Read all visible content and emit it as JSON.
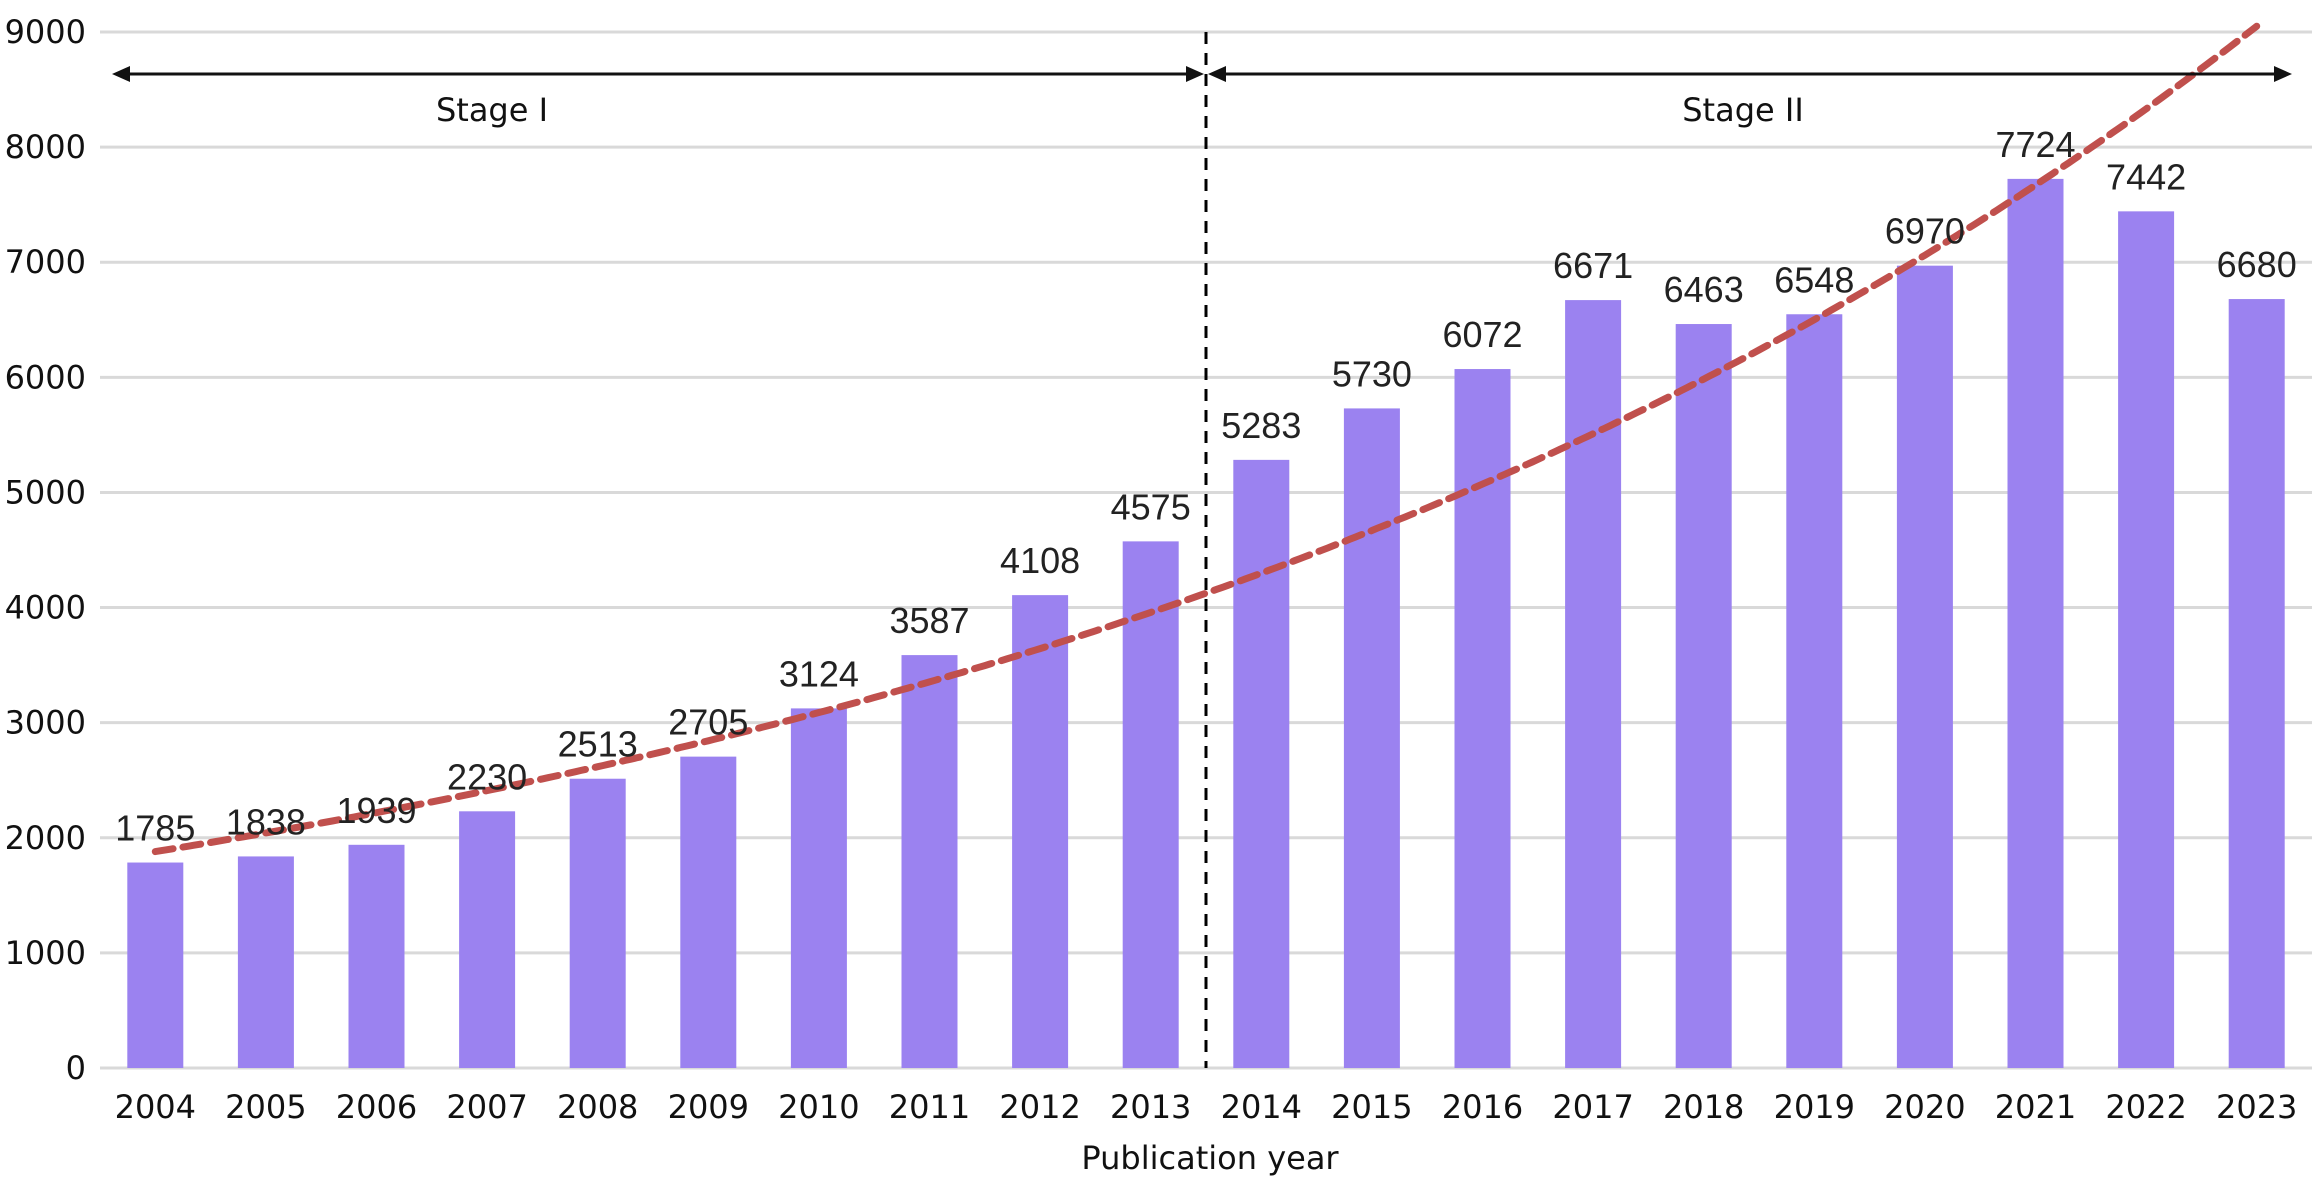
{
  "chart_data": {
    "type": "bar",
    "xlabel": "Publication year",
    "ylabel": "",
    "ylim": [
      0,
      9000
    ],
    "y_ticks": [
      "0",
      "1000",
      "2000",
      "3000",
      "4000",
      "5000",
      "6000",
      "7000",
      "8000",
      "9000"
    ],
    "grid": true,
    "categories": [
      "2004",
      "2005",
      "2006",
      "2007",
      "2008",
      "2009",
      "2010",
      "2011",
      "2012",
      "2013",
      "2014",
      "2015",
      "2016",
      "2017",
      "2018",
      "2019",
      "2020",
      "2021",
      "2022",
      "2023"
    ],
    "values": [
      1785,
      1838,
      1939,
      2230,
      2513,
      2705,
      3124,
      3587,
      4108,
      4575,
      5283,
      5730,
      6072,
      6671,
      6463,
      6548,
      6970,
      7724,
      7442,
      6680
    ],
    "trendline": {
      "style": "dashed",
      "type": "exponential",
      "start": 1880,
      "end": 9050
    },
    "stages": [
      {
        "label": "Stage I",
        "from": "2004",
        "to": "2013"
      },
      {
        "label": "Stage II",
        "from": "2014",
        "to": "2023"
      }
    ],
    "divider_between": [
      "2013",
      "2014"
    ],
    "colors": {
      "bar": "#9b82f0",
      "trend": "#c0504d",
      "grid": "#d9d9d9",
      "text": "#111111"
    }
  }
}
